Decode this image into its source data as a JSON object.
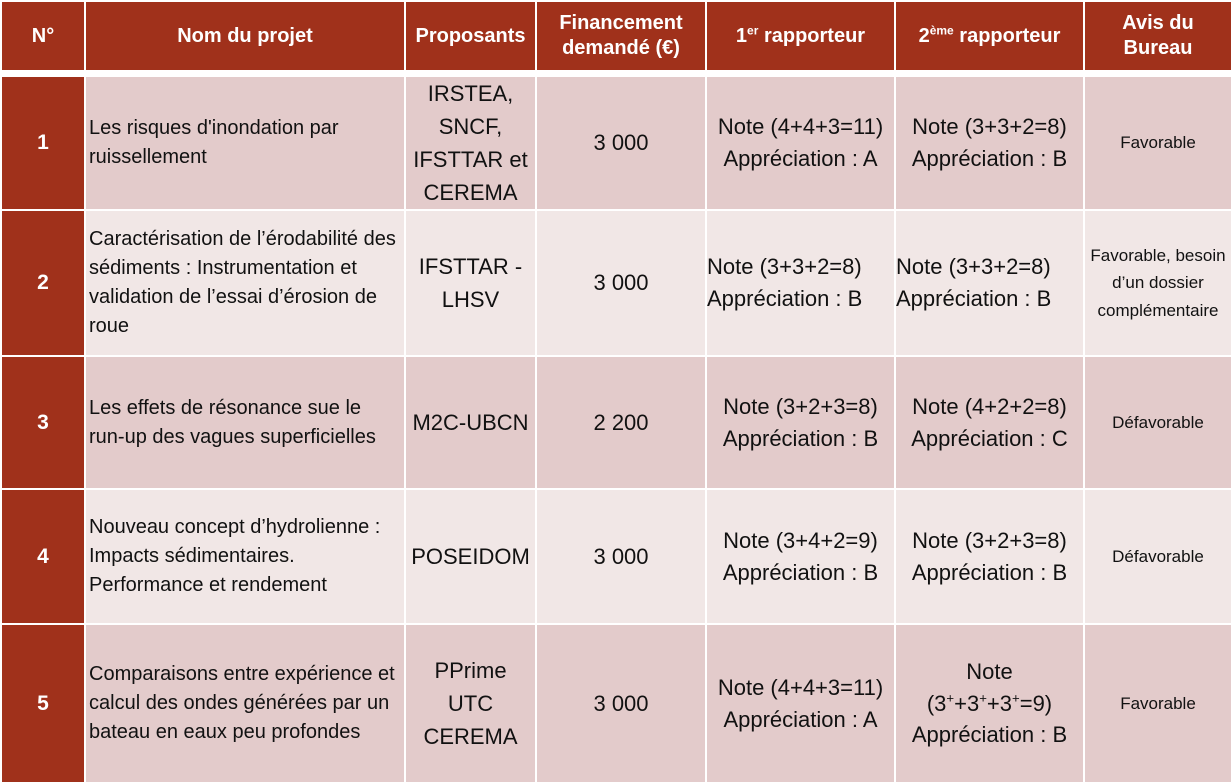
{
  "headers": {
    "num": "N°",
    "nom": "Nom du projet",
    "proposants": "Proposants",
    "financement": "Financement demandé (€)",
    "rap1_prefix": "1",
    "rap1_sup": "er",
    "rap1_suffix": " rapporteur",
    "rap2_prefix": "2",
    "rap2_sup": "ème",
    "rap2_suffix": " rapporteur",
    "avis": "Avis du Bureau"
  },
  "rows": [
    {
      "num": "1",
      "title": "Les risques d'inondation par ruissellement",
      "proposants": [
        "IRSTEA,",
        "SNCF,",
        "IFSTTAR et",
        "CEREMA"
      ],
      "financement": "3 000",
      "rap1": [
        "Note (4+4+3=11)",
        "Appréciation : A"
      ],
      "rap2": [
        "Note (3+3+2=8)",
        "Appréciation : B"
      ],
      "avis": "Favorable"
    },
    {
      "num": "2",
      "title": "Caractérisation de l’érodabilité des sédiments : Instrumentation et validation de l’essai d’érosion de roue",
      "proposants": [
        "IFSTTAR -",
        "LHSV"
      ],
      "financement": "3 000",
      "rap1": [
        "Note (3+3+2=8)",
        "Appréciation : B"
      ],
      "rap2": [
        "Note (3+3+2=8)",
        "Appréciation : B"
      ],
      "avis": "Favorable, besoin d’un dossier complémentaire"
    },
    {
      "num": "3",
      "title": "Les effets de résonance sue le run-up des vagues superficielles",
      "proposants": [
        "M2C-UBCN"
      ],
      "financement": "2 200",
      "rap1": [
        "Note (3+2+3=8)",
        "Appréciation : B"
      ],
      "rap2": [
        "Note (4+2+2=8)",
        "Appréciation : C"
      ],
      "avis": "Défavorable"
    },
    {
      "num": "4",
      "title": "Nouveau concept d’hydrolienne : Impacts sédimentaires. Performance et rendement",
      "proposants": [
        "POSEIDOM"
      ],
      "financement": "3 000",
      "rap1": [
        "Note (3+4+2=9)",
        "Appréciation : B"
      ],
      "rap2": [
        "Note (3+2+3=8)",
        "Appréciation : B"
      ],
      "avis": "Défavorable"
    },
    {
      "num": "5",
      "title": "Comparaisons entre expérience et calcul des ondes générées par un bateau en eaux peu profondes",
      "proposants": [
        "PPrime",
        "UTC",
        "CEREMA"
      ],
      "financement": "3 000",
      "rap1": [
        "Note (4+4+3=11)",
        "Appréciation : A"
      ],
      "rap2_note_label": "Note",
      "rap2_note_parts": [
        "(3",
        "+",
        "+3",
        "+",
        "+3",
        "+",
        "=9)"
      ],
      "rap2_appreciation": "Appréciation : B",
      "avis": "Favorable"
    }
  ]
}
